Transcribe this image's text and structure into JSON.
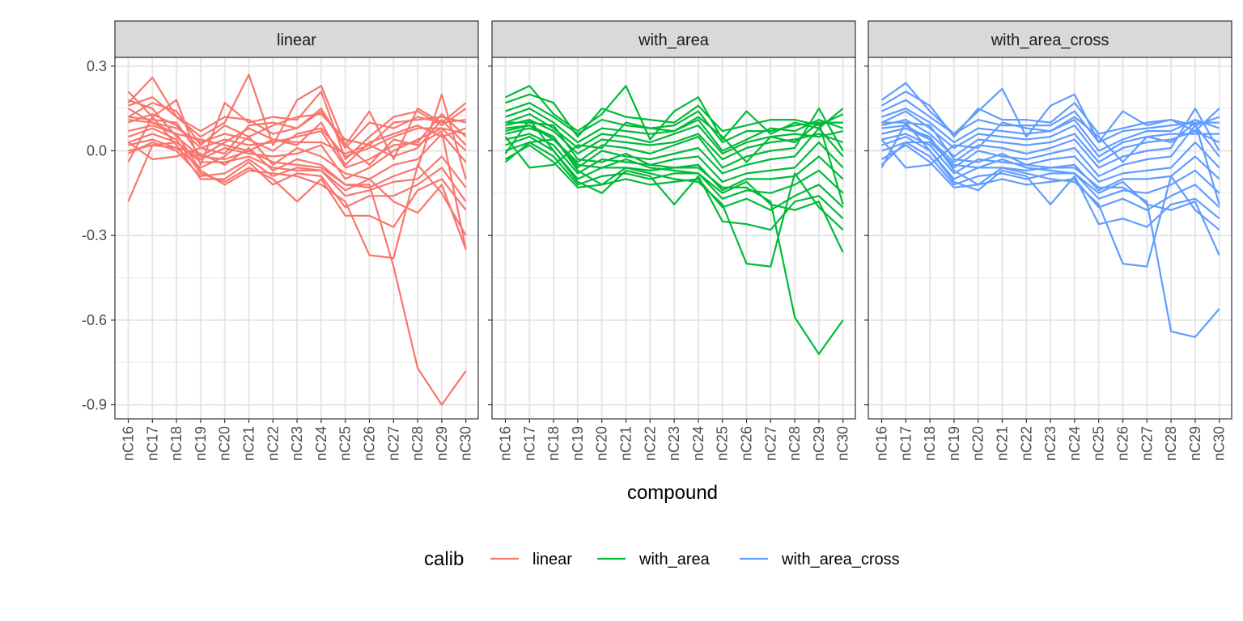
{
  "chart_data": {
    "type": "line",
    "facet_by": "calib",
    "xlabel": "compound",
    "ylabel": "",
    "ylim": [
      -0.95,
      0.33
    ],
    "y_ticks": [
      "0.3",
      "0.0",
      "-0.3",
      "-0.6",
      "-0.9"
    ],
    "y_tick_values": [
      0.3,
      0.0,
      -0.3,
      -0.6,
      -0.9
    ],
    "categories": [
      "nC16",
      "nC17",
      "nC18",
      "nC19",
      "nC20",
      "nC21",
      "nC22",
      "nC23",
      "nC24",
      "nC25",
      "nC26",
      "nC27",
      "nC28",
      "nC29",
      "nC30"
    ],
    "grid": true,
    "legend": {
      "title": "calib",
      "position": "bottom",
      "entries": [
        {
          "label": "linear",
          "color": "#F8766D"
        },
        {
          "label": "with_area",
          "color": "#00BA38"
        },
        {
          "label": "with_area_cross",
          "color": "#619CFF"
        }
      ]
    },
    "panels": [
      {
        "name": "linear",
        "color": "#F8766D",
        "series": [
          [
            0.17,
            0.26,
            0.12,
            0.05,
            0.1,
            0.27,
            0.02,
            0.18,
            0.23,
            0.02,
            0.14,
            -0.03,
            0.15,
            0.1,
            0.17
          ],
          [
            0.21,
            0.12,
            0.18,
            -0.05,
            0.17,
            0.1,
            0.12,
            0.11,
            0.21,
            -0.03,
            0.05,
            0.12,
            0.14,
            0.09,
            0.15
          ],
          [
            0.16,
            0.19,
            0.12,
            0.07,
            0.12,
            0.11,
            0.06,
            0.08,
            0.15,
            0.01,
            0.1,
            0.08,
            0.12,
            0.1,
            0.11
          ],
          [
            0.12,
            0.17,
            0.14,
            0.02,
            0.09,
            0.05,
            0.09,
            0.12,
            0.13,
            0.04,
            0.02,
            0.1,
            0.11,
            0.12,
            0.1
          ],
          [
            0.18,
            0.15,
            0.05,
            -0.02,
            0.03,
            0.08,
            0.04,
            0.02,
            0.1,
            -0.05,
            0.03,
            0.06,
            0.09,
            0.05,
            0.08
          ],
          [
            0.11,
            0.1,
            0.08,
            0.03,
            0.06,
            0.04,
            0.0,
            0.06,
            0.08,
            -0.02,
            0.01,
            0.05,
            0.08,
            0.08,
            0.06
          ],
          [
            0.1,
            0.13,
            0.09,
            0.01,
            0.04,
            0.02,
            0.03,
            0.05,
            0.07,
            -0.06,
            -0.03,
            0.02,
            0.03,
            0.13,
            0.05
          ],
          [
            0.07,
            0.09,
            0.06,
            0.04,
            0.02,
            0.0,
            0.04,
            0.03,
            0.03,
            -0.01,
            0.02,
            -0.02,
            0.01,
            0.11,
            0.02
          ],
          [
            0.03,
            0.06,
            0.03,
            -0.03,
            0.01,
            -0.01,
            -0.02,
            -0.01,
            0.02,
            -0.1,
            -0.06,
            0.0,
            0.04,
            0.08,
            0.0
          ],
          [
            0.02,
            0.04,
            0.01,
            -0.06,
            -0.02,
            0.05,
            -0.05,
            0.01,
            -0.02,
            -0.08,
            -0.1,
            -0.05,
            -0.03,
            0.06,
            -0.04
          ],
          [
            0.0,
            0.02,
            0.01,
            -0.01,
            -0.05,
            0.01,
            -0.07,
            -0.03,
            -0.05,
            -0.12,
            -0.13,
            -0.09,
            -0.06,
            0.2,
            -0.1
          ],
          [
            -0.01,
            0.03,
            0.0,
            -0.09,
            -0.08,
            -0.03,
            -0.09,
            -0.06,
            -0.07,
            -0.16,
            -0.14,
            -0.11,
            -0.1,
            -0.02,
            -0.13
          ],
          [
            -0.04,
            0.12,
            0.02,
            -0.1,
            -0.1,
            -0.04,
            -0.12,
            -0.08,
            -0.09,
            -0.2,
            -0.16,
            -0.16,
            -0.12,
            -0.06,
            -0.18
          ],
          [
            0.05,
            0.08,
            0.04,
            -0.08,
            -0.11,
            -0.06,
            -0.1,
            -0.18,
            -0.1,
            -0.23,
            -0.23,
            -0.27,
            -0.14,
            -0.1,
            -0.21
          ],
          [
            0.15,
            0.1,
            0.06,
            -0.07,
            -0.12,
            -0.07,
            -0.08,
            -0.09,
            -0.12,
            -0.18,
            -0.37,
            -0.38,
            -0.05,
            -0.15,
            -0.3
          ],
          [
            -0.18,
            0.02,
            0.03,
            -0.04,
            -0.04,
            -0.02,
            -0.06,
            -0.07,
            -0.07,
            -0.14,
            -0.1,
            -0.18,
            -0.22,
            -0.12,
            -0.35
          ],
          [
            0.12,
            0.11,
            0.1,
            -0.02,
            -0.03,
            0.0,
            -0.04,
            -0.05,
            -0.06,
            -0.12,
            -0.12,
            -0.41,
            -0.77,
            -0.9,
            -0.78
          ],
          [
            0.03,
            -0.03,
            -0.02,
            0.01,
            -0.01,
            0.09,
            0.1,
            0.08,
            0.14,
            0.02,
            -0.05,
            0.04,
            0.02,
            0.07,
            -0.35
          ]
        ]
      },
      {
        "name": "with_area",
        "color": "#00BA38",
        "series": [
          [
            0.19,
            0.23,
            0.13,
            0.07,
            0.13,
            0.23,
            0.04,
            0.14,
            0.19,
            0.04,
            0.14,
            0.06,
            0.1,
            0.08,
            0.15
          ],
          [
            0.17,
            0.2,
            0.17,
            0.05,
            0.15,
            0.12,
            0.11,
            0.1,
            0.16,
            0.07,
            0.09,
            0.11,
            0.11,
            0.09,
            0.13
          ],
          [
            0.14,
            0.17,
            0.12,
            0.06,
            0.11,
            0.09,
            0.08,
            0.09,
            0.14,
            0.03,
            0.07,
            0.07,
            0.09,
            0.1,
            0.1
          ],
          [
            0.12,
            0.15,
            0.1,
            0.03,
            0.08,
            0.07,
            0.06,
            0.07,
            0.11,
            0.0,
            0.04,
            0.08,
            0.07,
            0.11,
            0.08
          ],
          [
            0.1,
            0.13,
            0.08,
            0.01,
            0.06,
            0.05,
            0.03,
            0.06,
            0.09,
            -0.01,
            0.03,
            0.05,
            0.06,
            0.05,
            0.07
          ],
          [
            0.09,
            0.11,
            0.07,
            -0.01,
            0.04,
            0.03,
            0.02,
            0.03,
            0.06,
            -0.03,
            0.01,
            0.03,
            0.04,
            0.06,
            0.03
          ],
          [
            0.08,
            0.09,
            0.04,
            -0.04,
            0.02,
            0.01,
            -0.01,
            0.02,
            0.05,
            -0.06,
            -0.02,
            0.0,
            0.01,
            0.15,
            0.0
          ],
          [
            0.06,
            0.08,
            0.05,
            -0.06,
            0.0,
            -0.02,
            -0.03,
            -0.01,
            0.01,
            -0.08,
            -0.05,
            -0.03,
            -0.02,
            0.08,
            -0.02
          ],
          [
            0.04,
            0.06,
            0.02,
            -0.08,
            -0.03,
            -0.04,
            -0.05,
            -0.03,
            -0.02,
            -0.11,
            -0.08,
            -0.07,
            -0.06,
            0.03,
            -0.06
          ],
          [
            0.02,
            0.05,
            0.0,
            -0.1,
            -0.06,
            -0.06,
            -0.07,
            -0.06,
            -0.05,
            -0.14,
            -0.1,
            -0.1,
            -0.09,
            -0.02,
            -0.1
          ],
          [
            0.0,
            0.03,
            -0.02,
            -0.12,
            -0.09,
            -0.08,
            -0.1,
            -0.08,
            -0.08,
            -0.17,
            -0.14,
            -0.15,
            -0.12,
            -0.07,
            -0.15
          ],
          [
            -0.03,
            0.02,
            -0.04,
            -0.13,
            -0.12,
            -0.1,
            -0.12,
            -0.11,
            -0.1,
            -0.2,
            -0.17,
            -0.21,
            -0.16,
            -0.12,
            -0.2
          ],
          [
            -0.01,
            0.11,
            0.0,
            -0.11,
            -0.15,
            -0.07,
            -0.09,
            -0.19,
            -0.09,
            -0.25,
            -0.26,
            -0.28,
            -0.18,
            -0.16,
            -0.24
          ],
          [
            0.07,
            0.09,
            0.05,
            -0.07,
            -0.12,
            -0.06,
            -0.08,
            -0.1,
            -0.11,
            -0.19,
            -0.4,
            -0.41,
            -0.08,
            -0.2,
            -0.28
          ],
          [
            -0.04,
            0.03,
            0.04,
            -0.05,
            -0.06,
            -0.03,
            -0.06,
            -0.07,
            -0.08,
            -0.15,
            -0.11,
            -0.19,
            -0.21,
            -0.18,
            -0.36
          ],
          [
            0.1,
            0.1,
            0.09,
            -0.03,
            -0.04,
            -0.01,
            -0.05,
            -0.06,
            -0.06,
            -0.13,
            -0.13,
            -0.18,
            -0.59,
            -0.72,
            -0.6
          ],
          [
            0.05,
            -0.06,
            -0.05,
            0.02,
            0.01,
            0.1,
            0.08,
            0.07,
            0.12,
            0.05,
            -0.04,
            0.05,
            0.03,
            0.1,
            -0.19
          ]
        ]
      },
      {
        "name": "with_area_cross",
        "color": "#619CFF",
        "series": [
          [
            0.18,
            0.24,
            0.14,
            0.06,
            0.14,
            0.22,
            0.05,
            0.16,
            0.2,
            0.03,
            0.14,
            0.09,
            0.11,
            0.07,
            0.15
          ],
          [
            0.16,
            0.21,
            0.16,
            0.05,
            0.15,
            0.11,
            0.11,
            0.1,
            0.17,
            0.06,
            0.08,
            0.1,
            0.11,
            0.09,
            0.12
          ],
          [
            0.14,
            0.18,
            0.12,
            0.06,
            0.11,
            0.09,
            0.09,
            0.09,
            0.14,
            0.03,
            0.07,
            0.08,
            0.09,
            0.1,
            0.1
          ],
          [
            0.12,
            0.15,
            0.1,
            0.03,
            0.08,
            0.07,
            0.06,
            0.07,
            0.11,
            0.0,
            0.04,
            0.07,
            0.07,
            0.11,
            0.08
          ],
          [
            0.1,
            0.14,
            0.08,
            0.01,
            0.06,
            0.05,
            0.04,
            0.05,
            0.09,
            -0.02,
            0.03,
            0.05,
            0.06,
            0.06,
            0.06
          ],
          [
            0.09,
            0.11,
            0.06,
            -0.02,
            0.04,
            0.03,
            0.02,
            0.03,
            0.06,
            -0.04,
            0.01,
            0.03,
            0.04,
            0.07,
            0.03
          ],
          [
            0.08,
            0.09,
            0.04,
            -0.04,
            0.02,
            0.01,
            -0.01,
            0.01,
            0.04,
            -0.06,
            -0.02,
            0.0,
            0.01,
            0.15,
            0.0
          ],
          [
            0.06,
            0.08,
            0.04,
            -0.06,
            0.0,
            -0.02,
            -0.03,
            -0.01,
            0.01,
            -0.09,
            -0.05,
            -0.03,
            -0.02,
            0.09,
            -0.02
          ],
          [
            0.04,
            0.06,
            0.02,
            -0.08,
            -0.03,
            -0.04,
            -0.05,
            -0.03,
            -0.02,
            -0.11,
            -0.08,
            -0.07,
            -0.06,
            0.03,
            -0.06
          ],
          [
            0.02,
            0.05,
            0.0,
            -0.1,
            -0.06,
            -0.06,
            -0.07,
            -0.06,
            -0.05,
            -0.14,
            -0.1,
            -0.1,
            -0.09,
            -0.02,
            -0.1
          ],
          [
            0.0,
            0.03,
            -0.02,
            -0.12,
            -0.09,
            -0.08,
            -0.1,
            -0.08,
            -0.08,
            -0.17,
            -0.14,
            -0.15,
            -0.12,
            -0.07,
            -0.15
          ],
          [
            -0.03,
            0.02,
            -0.04,
            -0.13,
            -0.12,
            -0.1,
            -0.12,
            -0.11,
            -0.1,
            -0.2,
            -0.17,
            -0.21,
            -0.16,
            -0.12,
            -0.2
          ],
          [
            -0.06,
            0.1,
            0.0,
            -0.11,
            -0.14,
            -0.07,
            -0.09,
            -0.19,
            -0.09,
            -0.26,
            -0.24,
            -0.27,
            -0.19,
            -0.17,
            -0.24
          ],
          [
            0.06,
            0.08,
            0.05,
            -0.07,
            -0.12,
            -0.06,
            -0.08,
            -0.1,
            -0.11,
            -0.19,
            -0.4,
            -0.41,
            -0.09,
            -0.21,
            -0.28
          ],
          [
            -0.05,
            0.03,
            0.03,
            -0.05,
            -0.06,
            -0.03,
            -0.06,
            -0.07,
            -0.08,
            -0.15,
            -0.11,
            -0.19,
            -0.21,
            -0.18,
            -0.37
          ],
          [
            0.1,
            0.1,
            0.09,
            -0.03,
            -0.04,
            -0.01,
            -0.05,
            -0.06,
            -0.06,
            -0.13,
            -0.13,
            -0.18,
            -0.64,
            -0.66,
            -0.56
          ],
          [
            0.04,
            -0.06,
            -0.05,
            0.02,
            0.01,
            0.1,
            0.08,
            0.07,
            0.12,
            0.05,
            -0.04,
            0.05,
            0.03,
            0.1,
            -0.19
          ]
        ]
      }
    ]
  }
}
